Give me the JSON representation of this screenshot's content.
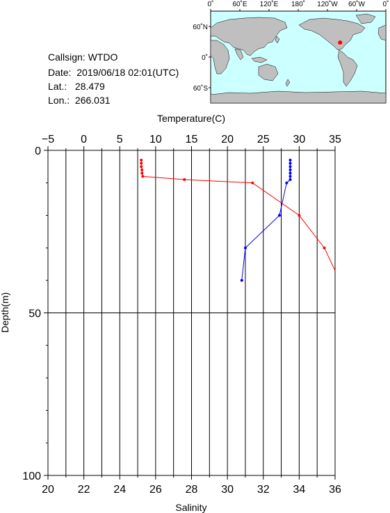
{
  "station": {
    "callsign_label": "Callsign:",
    "callsign": "WTDO",
    "date_label": "Date:",
    "date": "2019/06/18 02:01(UTC)",
    "lat_label": "Lat.:",
    "lat": "28.479",
    "lon_label": "Lon.:",
    "lon": "266.031"
  },
  "map": {
    "top_ticks": [
      "0˚",
      "60˚E",
      "120˚E",
      "180˚",
      "120˚W",
      "60˚W",
      "0˚"
    ],
    "left_ticks": [
      "60˚N",
      "0˚",
      "60˚S"
    ],
    "ocean_color": "#ccffff",
    "land_color": "#bfbfbf",
    "marker_color": "#ff0000",
    "marker_lon": 266.031,
    "marker_lat": 28.479
  },
  "chart_data": {
    "type": "line",
    "top_axis_label": "Temperature(C)",
    "bottom_axis_label": "Salinity",
    "left_axis_label": "Depth(m)",
    "temperature_ticks": [
      "−5",
      "0",
      "5",
      "10",
      "15",
      "20",
      "25",
      "30",
      "35"
    ],
    "temperature_range": [
      -5,
      35
    ],
    "salinity_ticks": [
      "20",
      "22",
      "24",
      "26",
      "28",
      "30",
      "32",
      "34",
      "36"
    ],
    "salinity_range": [
      20,
      36
    ],
    "depth_ticks": [
      "0",
      "50",
      "100"
    ],
    "depth_range": [
      0,
      100
    ],
    "grid": true,
    "series": [
      {
        "quantity": "temperature",
        "color": "#ff0000",
        "points": [
          {
            "x": 8.0,
            "depth": 3
          },
          {
            "x": 8.0,
            "depth": 4
          },
          {
            "x": 8.0,
            "depth": 5
          },
          {
            "x": 8.1,
            "depth": 6
          },
          {
            "x": 8.1,
            "depth": 7
          },
          {
            "x": 8.2,
            "depth": 8
          },
          {
            "x": 14.0,
            "depth": 9
          },
          {
            "x": 23.5,
            "depth": 10
          },
          {
            "x": 30.0,
            "depth": 20
          },
          {
            "x": 33.5,
            "depth": 30
          },
          {
            "x": 35.0,
            "depth": 37
          }
        ]
      },
      {
        "quantity": "salinity",
        "color": "#0000ff",
        "points": [
          {
            "x": 33.5,
            "depth": 3
          },
          {
            "x": 33.5,
            "depth": 4
          },
          {
            "x": 33.5,
            "depth": 5
          },
          {
            "x": 33.5,
            "depth": 6
          },
          {
            "x": 33.5,
            "depth": 7
          },
          {
            "x": 33.5,
            "depth": 8
          },
          {
            "x": 33.5,
            "depth": 9
          },
          {
            "x": 33.3,
            "depth": 10
          },
          {
            "x": 32.9,
            "depth": 20
          },
          {
            "x": 31.0,
            "depth": 30
          },
          {
            "x": 30.8,
            "depth": 40
          }
        ]
      }
    ]
  }
}
